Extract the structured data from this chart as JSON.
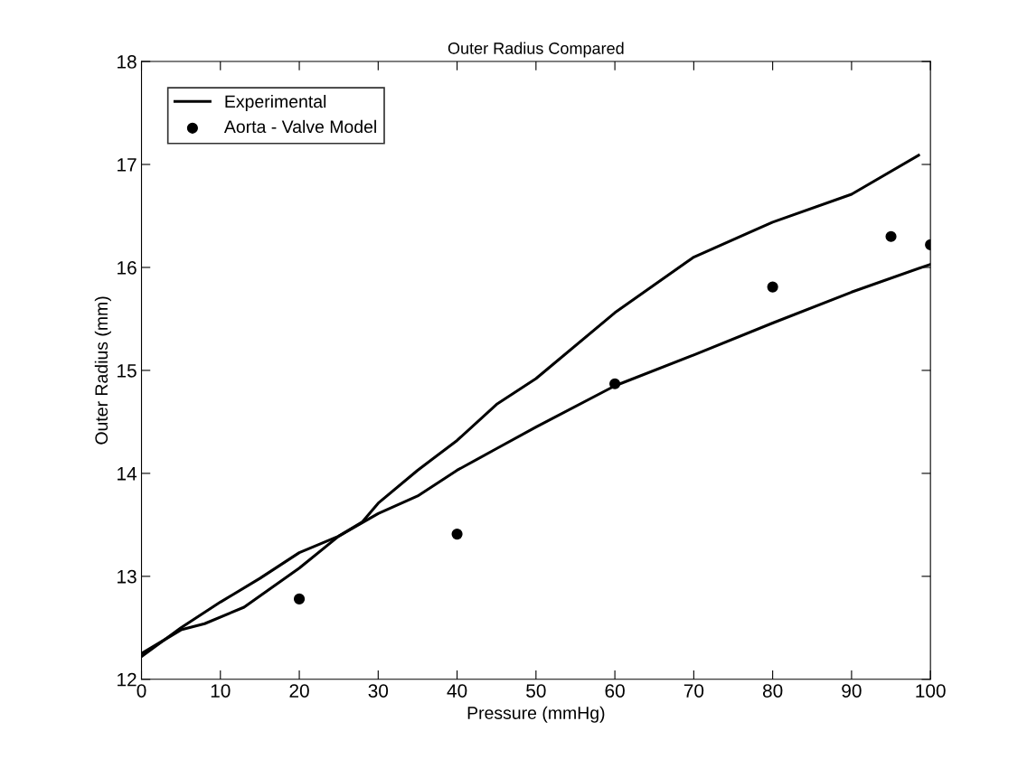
{
  "chart_data": {
    "type": "line",
    "title": "Outer Radius Compared",
    "xlabel": "Pressure (mmHg)",
    "ylabel": "Outer Radius (mm)",
    "xlim": [
      0,
      100
    ],
    "ylim": [
      12,
      18
    ],
    "xticks": [
      0,
      10,
      20,
      30,
      40,
      50,
      60,
      70,
      80,
      90,
      100
    ],
    "yticks": [
      12,
      13,
      14,
      15,
      16,
      17,
      18
    ],
    "grid": false,
    "legend": "top left",
    "series": [
      {
        "name": "Experimental",
        "color": "#000000",
        "x": [
          0,
          5,
          8,
          13,
          20,
          25,
          28,
          30,
          35,
          40,
          45,
          50,
          60,
          70,
          80,
          90,
          98.5
        ],
        "values": [
          12.25,
          12.48,
          12.54,
          12.7,
          13.08,
          13.39,
          13.53,
          13.71,
          14.03,
          14.32,
          14.67,
          14.92,
          15.56,
          16.1,
          16.44,
          16.71,
          17.09
        ]
      },
      {
        "color": "#000000",
        "x": [
          0,
          5,
          10,
          15,
          20,
          25,
          30,
          35,
          40,
          45,
          50,
          60,
          70,
          80,
          90,
          100
        ],
        "values": [
          12.22,
          12.5,
          12.75,
          12.98,
          13.23,
          13.39,
          13.61,
          13.78,
          14.03,
          14.24,
          14.45,
          14.85,
          15.15,
          15.46,
          15.76,
          16.03
        ]
      },
      {
        "name": "Aorta - Valve Model",
        "color": "#000000",
        "type": "scatter",
        "marker": "circle",
        "x": [
          20,
          40,
          60,
          80,
          95,
          100
        ],
        "values": [
          12.78,
          13.41,
          14.87,
          15.81,
          16.3,
          16.22
        ]
      }
    ]
  }
}
